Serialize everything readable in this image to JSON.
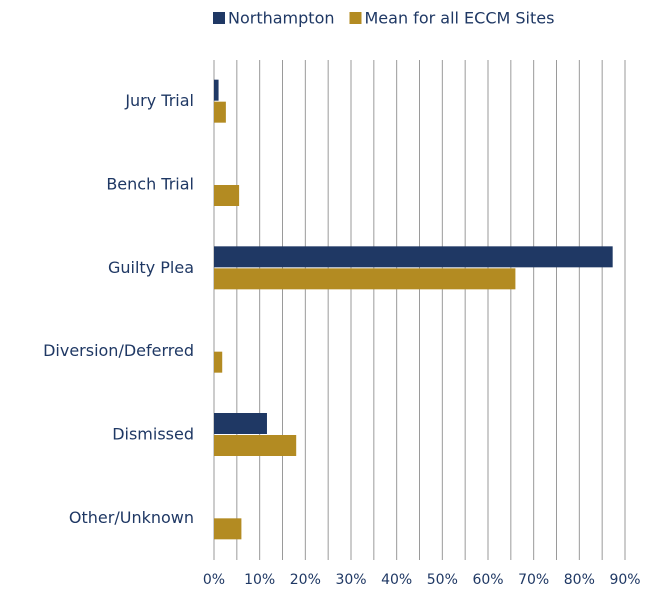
{
  "chart_data": {
    "type": "hbar",
    "categories": [
      "Jury Trial",
      "Bench Trial",
      "Guilty Plea",
      "Diversion/Deferred",
      "Dismissed",
      "Other/Unknown"
    ],
    "series": [
      {
        "name": "Northampton",
        "color": "#1f3864",
        "values": [
          1,
          0,
          87.3,
          0,
          11.6,
          0
        ]
      },
      {
        "name": "Mean for all ECCM Sites",
        "color": "#b38b22",
        "values": [
          2.6,
          5.5,
          66,
          1.8,
          18,
          6
        ]
      }
    ],
    "xlim": [
      0,
      90
    ],
    "xticks": [
      {
        "value": 0,
        "label": "0%"
      },
      {
        "value": 10,
        "label": "10%"
      },
      {
        "value": 20,
        "label": "20%"
      },
      {
        "value": 30,
        "label": "30%"
      },
      {
        "value": 40,
        "label": "40%"
      },
      {
        "value": 50,
        "label": "50%"
      },
      {
        "value": 60,
        "label": "60%"
      },
      {
        "value": 70,
        "label": "70%"
      },
      {
        "value": 80,
        "label": "80%"
      },
      {
        "value": 90,
        "label": "90%"
      }
    ],
    "minor_xticks": [
      5,
      15,
      25,
      35,
      45,
      55,
      65,
      75,
      85
    ],
    "grid": true,
    "legend": "top"
  }
}
